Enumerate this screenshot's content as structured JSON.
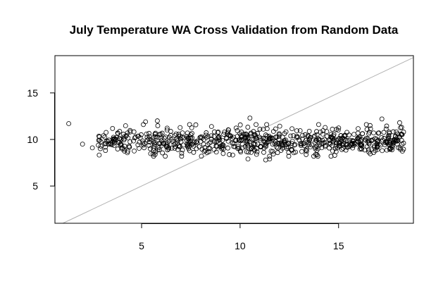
{
  "chart_data": {
    "type": "scatter",
    "title": "July Temperature WA Cross Validation from Random Data",
    "xlabel": "",
    "ylabel": "",
    "xlim": [
      0.6,
      18.8
    ],
    "ylim": [
      1.0,
      19.0
    ],
    "x_ticks": [
      5,
      10,
      15
    ],
    "y_ticks": [
      5,
      10,
      15
    ],
    "reference_line": {
      "slope": 1,
      "intercept": 0,
      "color": "#b0b0b0"
    },
    "marker": "open-circle",
    "grid": false,
    "seed": 20240713,
    "n_points": 720,
    "x_range": [
      2.8,
      18.3
    ],
    "y_center": 9.8,
    "y_spread": 0.75,
    "highlighted_points": [
      {
        "x": 1.3,
        "y": 11.7
      },
      {
        "x": 2.0,
        "y": 9.5
      },
      {
        "x": 2.5,
        "y": 9.1
      },
      {
        "x": 5.2,
        "y": 11.9
      },
      {
        "x": 5.8,
        "y": 12.0
      },
      {
        "x": 10.5,
        "y": 12.3
      },
      {
        "x": 10.4,
        "y": 7.9
      },
      {
        "x": 11.3,
        "y": 7.8
      },
      {
        "x": 11.5,
        "y": 7.9
      },
      {
        "x": 16.6,
        "y": 11.5
      },
      {
        "x": 17.2,
        "y": 12.2
      },
      {
        "x": 17.0,
        "y": 9.9
      },
      {
        "x": 17.8,
        "y": 9.7
      },
      {
        "x": 18.1,
        "y": 11.8
      },
      {
        "x": 18.2,
        "y": 11.3
      },
      {
        "x": 18.3,
        "y": 10.8
      },
      {
        "x": 18.1,
        "y": 10.3
      },
      {
        "x": 18.2,
        "y": 9.9
      },
      {
        "x": 18.3,
        "y": 9.6
      },
      {
        "x": 18.0,
        "y": 10.6
      }
    ]
  }
}
